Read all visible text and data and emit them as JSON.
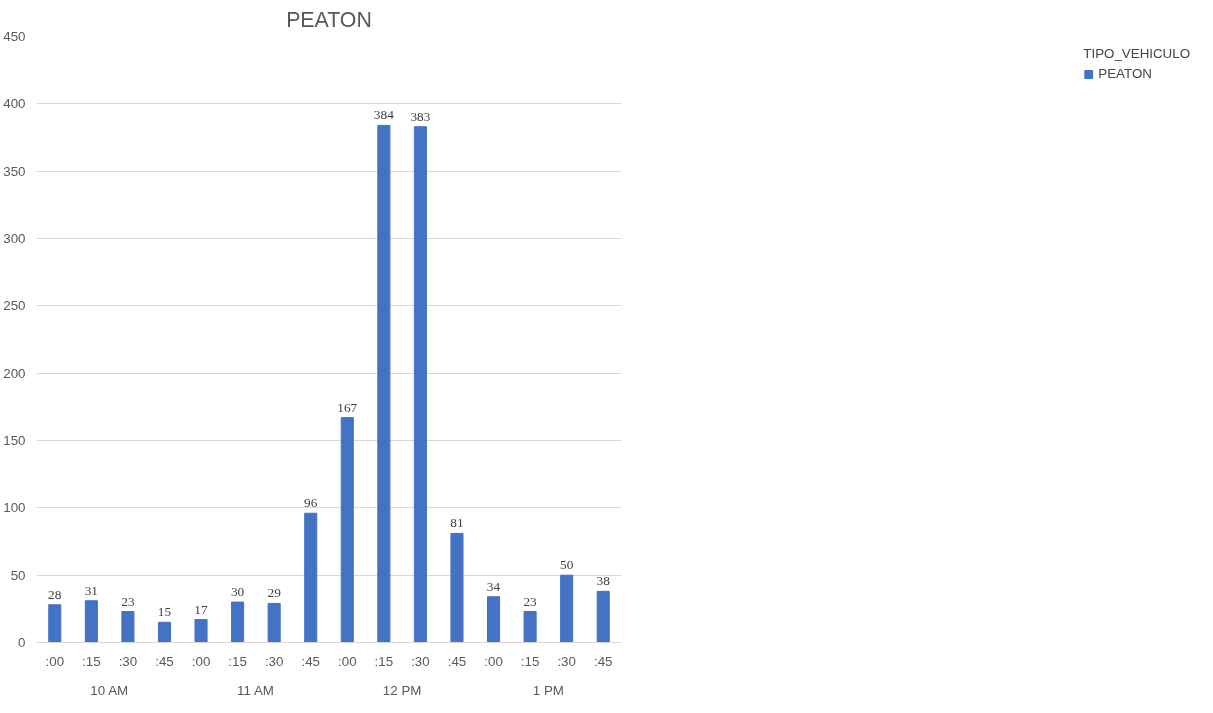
{
  "chart_data": {
    "type": "bar",
    "title": "PEATON",
    "categories": [
      ":00",
      ":15",
      ":30",
      ":45",
      ":00",
      ":15",
      ":30",
      ":45",
      ":00",
      ":15",
      ":30",
      ":45",
      ":00",
      ":15",
      ":30",
      ":45"
    ],
    "annotations": [
      "10 AM",
      "11 AM",
      "12 PM",
      "1 PM"
    ],
    "legend_title": "TIPO_VEHICULO",
    "series": [
      {
        "name": "PEATON",
        "color": "#4472c4",
        "values": [
          28,
          31,
          23,
          15,
          17,
          30,
          29,
          96,
          167,
          384,
          383,
          81,
          34,
          23,
          50,
          38
        ]
      }
    ],
    "ylim": [
      0,
      450
    ],
    "yticks": [
      0,
      50,
      100,
      150,
      200,
      250,
      300,
      350,
      400,
      450
    ],
    "grid": "y",
    "legend": "right",
    "data_labels": true
  }
}
